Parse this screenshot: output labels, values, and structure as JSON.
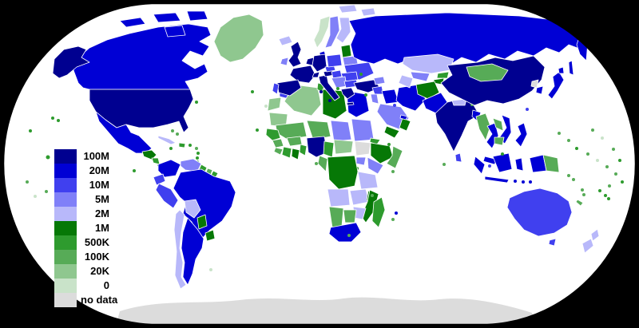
{
  "figure": {
    "type": "world-choropleth-map",
    "projection": "robinson",
    "background": "#000000",
    "ocean": "#ffffff",
    "outline": "#000000",
    "country_border": "#ffffff"
  },
  "legend": {
    "items": [
      {
        "label": "100M",
        "key": "c100M",
        "color": "#000090"
      },
      {
        "label": "20M",
        "key": "c20M",
        "color": "#0000D5"
      },
      {
        "label": "10M",
        "key": "c10M",
        "color": "#4040EF"
      },
      {
        "label": "5M",
        "key": "c5M",
        "color": "#8080F8"
      },
      {
        "label": "2M",
        "key": "c2M",
        "color": "#B8B8FA"
      },
      {
        "label": "1M",
        "key": "c1M",
        "color": "#067806"
      },
      {
        "label": "500K",
        "key": "c500K",
        "color": "#2E9B2E"
      },
      {
        "label": "100K",
        "key": "c100K",
        "color": "#57AB57"
      },
      {
        "label": "20K",
        "key": "c20K",
        "color": "#8FC78F"
      },
      {
        "label": "0",
        "key": "c0",
        "color": "#C9E3C9"
      },
      {
        "label": "no data",
        "key": "cNoData",
        "color": "#DCDCDC"
      }
    ]
  },
  "map": {
    "regions": [
      {
        "name": "United States",
        "category": "100M"
      },
      {
        "name": "China",
        "category": "100M"
      },
      {
        "name": "India",
        "category": "100M"
      },
      {
        "name": "Nigeria",
        "category": "100M"
      },
      {
        "name": "France",
        "category": "100M"
      },
      {
        "name": "Germany",
        "category": "100M"
      },
      {
        "name": "United Kingdom",
        "category": "100M"
      },
      {
        "name": "Spain",
        "category": "100M"
      },
      {
        "name": "Italy",
        "category": "100M"
      },
      {
        "name": "Turkey",
        "category": "100M"
      },
      {
        "name": "Canada",
        "category": "20M"
      },
      {
        "name": "Russia",
        "category": "20M"
      },
      {
        "name": "Mexico",
        "category": "20M"
      },
      {
        "name": "Brazil",
        "category": "20M"
      },
      {
        "name": "Argentina",
        "category": "20M"
      },
      {
        "name": "Colombia",
        "category": "20M"
      },
      {
        "name": "Egypt",
        "category": "20M"
      },
      {
        "name": "South Africa",
        "category": "20M"
      },
      {
        "name": "Iran",
        "category": "20M"
      },
      {
        "name": "Pakistan",
        "category": "20M"
      },
      {
        "name": "Indonesia",
        "category": "20M"
      },
      {
        "name": "Japan",
        "category": "20M"
      },
      {
        "name": "South Korea",
        "category": "20M"
      },
      {
        "name": "Vietnam",
        "category": "20M"
      },
      {
        "name": "Thailand",
        "category": "20M"
      },
      {
        "name": "Philippines",
        "category": "20M"
      },
      {
        "name": "Australia",
        "category": "10M"
      },
      {
        "name": "Morocco",
        "category": "10M"
      },
      {
        "name": "Ukraine",
        "category": "10M"
      },
      {
        "name": "Poland",
        "category": "10M"
      },
      {
        "name": "Peru",
        "category": "10M"
      },
      {
        "name": "Saudi Arabia",
        "category": "5M"
      },
      {
        "name": "Venezuela",
        "category": "5M"
      },
      {
        "name": "Sweden",
        "category": "5M"
      },
      {
        "name": "Kazakhstan",
        "category": "2M"
      },
      {
        "name": "Chile",
        "category": "2M"
      },
      {
        "name": "Bolivia",
        "category": "2M"
      },
      {
        "name": "New Zealand",
        "category": "2M"
      },
      {
        "name": "Angola",
        "category": "2M"
      },
      {
        "name": "Afghanistan",
        "category": "1M"
      },
      {
        "name": "Libya",
        "category": "1M"
      },
      {
        "name": "Ethiopia",
        "category": "1M"
      },
      {
        "name": "DR Congo",
        "category": "1M"
      },
      {
        "name": "Yemen",
        "category": "1M"
      },
      {
        "name": "Paraguay",
        "category": "1M"
      },
      {
        "name": "Uruguay",
        "category": "1M"
      },
      {
        "name": "Mongolia",
        "category": "100K"
      },
      {
        "name": "Myanmar",
        "category": "100K"
      },
      {
        "name": "Papua New Guinea",
        "category": "100K"
      },
      {
        "name": "Mali",
        "category": "100K"
      },
      {
        "name": "Niger",
        "category": "100K"
      },
      {
        "name": "Algeria",
        "category": "20K"
      },
      {
        "name": "Greenland",
        "category": "20K"
      },
      {
        "name": "Mauritania",
        "category": "20K"
      },
      {
        "name": "Norway",
        "category": "0"
      },
      {
        "name": "North Korea",
        "category": "no data"
      },
      {
        "name": "South Sudan",
        "category": "no data"
      },
      {
        "name": "Antarctica",
        "category": "no data"
      }
    ]
  }
}
